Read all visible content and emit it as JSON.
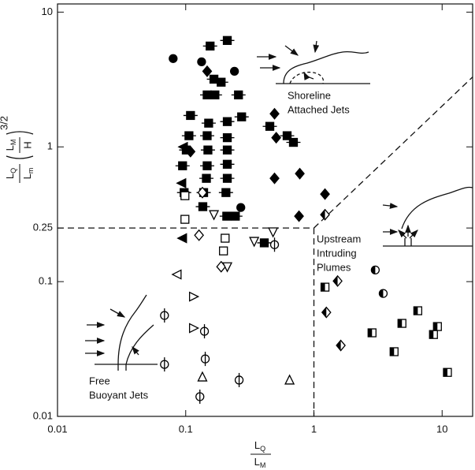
{
  "chart_data": {
    "type": "scatter",
    "log_x": true,
    "log_y": true,
    "xlim": [
      0.01,
      17.3
    ],
    "ylim": [
      0.01,
      11.5
    ],
    "xticks": [
      0.01,
      0.1,
      1,
      10
    ],
    "yticks": [
      0.01,
      0.1,
      0.25,
      1,
      10
    ],
    "xlabel": {
      "numerator": [
        "L",
        "Q"
      ],
      "denominator": [
        "L",
        "M"
      ]
    },
    "ylabel": {
      "numerator": [
        "L",
        "Q"
      ],
      "denominator": [
        "L",
        "m"
      ],
      "inner_numerator": [
        "L",
        "M"
      ],
      "inner_denominator": [
        "H"
      ],
      "exponent": "3/2"
    },
    "annotations": [
      {
        "lines": [
          "Shoreline",
          "Attached Jets"
        ]
      },
      {
        "lines": [
          "Upstream",
          "Intruding",
          "Plumes"
        ]
      },
      {
        "lines": [
          "Free",
          "Buoyant Jets"
        ]
      }
    ],
    "boundaries": [
      {
        "x": [
          0.01,
          1
        ],
        "y": [
          0.25,
          0.25
        ]
      },
      {
        "x": [
          1,
          1
        ],
        "y": [
          0.25,
          0.01
        ]
      },
      {
        "x": [
          1,
          17.3
        ],
        "y": [
          0.25,
          3.3
        ]
      }
    ],
    "series": [
      {
        "marker": "circle",
        "fill": "filled",
        "color": "#000000",
        "x": [
          0.0798,
          0.133,
          0.24,
          0.269
        ],
        "y": [
          4.52,
          4.28,
          3.64,
          0.355
        ]
      },
      {
        "marker": "square",
        "fill": "filled",
        "bar": true,
        "color": "#000000",
        "x": [
          0.211,
          0.155,
          0.166,
          0.189,
          0.147,
          0.169,
          0.258,
          0.273,
          0.109,
          0.151,
          0.211,
          0.106,
          0.147,
          0.211,
          0.101,
          0.149,
          0.211,
          0.0945,
          0.147,
          0.211,
          0.145,
          0.211,
          0.0972,
          0.138,
          0.206,
          0.136,
          0.209,
          0.244,
          0.41,
          0.453,
          0.618,
          0.692
        ],
        "y": [
          6.16,
          5.6,
          3.18,
          3.02,
          2.43,
          2.43,
          2.43,
          1.67,
          1.71,
          1.5,
          1.54,
          1.21,
          1.21,
          1.17,
          0.948,
          0.948,
          0.948,
          0.724,
          0.724,
          0.743,
          0.584,
          0.584,
          0.458,
          0.458,
          0.458,
          0.36,
          0.306,
          0.306,
          0.194,
          1.42,
          1.21,
          1.08
        ]
      },
      {
        "marker": "diamond",
        "fill": "filled",
        "color": "#000000",
        "x": [
          0.147,
          0.493,
          0.508,
          0.776,
          0.493,
          0.109,
          1.22,
          0.765
        ],
        "y": [
          3.64,
          1.76,
          1.17,
          0.633,
          0.584,
          0.922,
          0.446,
          0.306
        ]
      },
      {
        "marker": "triangle-left",
        "fill": "filled",
        "color": "#000000",
        "x": [
          0.096,
          0.0932,
          0.0945
        ],
        "y": [
          1,
          0.538,
          0.21
        ]
      },
      {
        "marker": "square",
        "fill": "open",
        "color": "#000000",
        "x": [
          0.0986,
          0.0986,
          0.203,
          0.197
        ],
        "y": [
          0.434,
          0.29,
          0.21,
          0.169
        ]
      },
      {
        "marker": "diamond",
        "fill": "open",
        "color": "#000000",
        "x": [
          0.135,
          0.127,
          0.189
        ],
        "y": [
          0.458,
          0.221,
          0.129
        ]
      },
      {
        "marker": "triangle-down",
        "fill": "open",
        "color": "#000000",
        "x": [
          0.166,
          0.342,
          0.211,
          0.48
        ],
        "y": [
          0.314,
          0.199,
          0.129,
          0.234
        ]
      },
      {
        "marker": "circle",
        "fill": "open",
        "bar": true,
        "color": "#000000",
        "x": [
          0.493,
          0.0683,
          0.14,
          0.0683,
          0.142,
          0.261,
          0.129
        ],
        "y": [
          0.188,
          0.0561,
          0.0428,
          0.0243,
          0.0267,
          0.0186,
          0.014
        ]
      },
      {
        "marker": "triangle-left",
        "fill": "open",
        "color": "#000000",
        "x": [
          0.0857
        ],
        "y": [
          0.113
        ]
      },
      {
        "marker": "triangle-right",
        "fill": "open",
        "color": "#000000",
        "x": [
          0.115,
          0.115
        ],
        "y": [
          0.0774,
          0.0452
        ]
      },
      {
        "marker": "triangle-up",
        "fill": "open",
        "color": "#000000",
        "x": [
          0.135,
          0.646
        ],
        "y": [
          0.0196,
          0.0186
        ]
      },
      {
        "marker": "circle",
        "fill": "half",
        "color": "#000000",
        "x": [
          3.01,
          3.47
        ],
        "y": [
          0.122,
          0.0817
        ]
      },
      {
        "marker": "square",
        "fill": "half",
        "color": "#000000",
        "x": [
          1.22,
          6.46,
          4.86,
          2.84,
          9.19,
          8.56,
          4.22,
          11.0
        ],
        "y": [
          0.091,
          0.0608,
          0.049,
          0.0417,
          0.0464,
          0.0405,
          0.0302,
          0.0212
        ]
      },
      {
        "marker": "diamond",
        "fill": "half",
        "color": "#000000",
        "x": [
          1.22,
          1.53,
          1.25,
          1.62
        ],
        "y": [
          0.314,
          0.101,
          0.0591,
          0.0336
        ]
      }
    ]
  }
}
